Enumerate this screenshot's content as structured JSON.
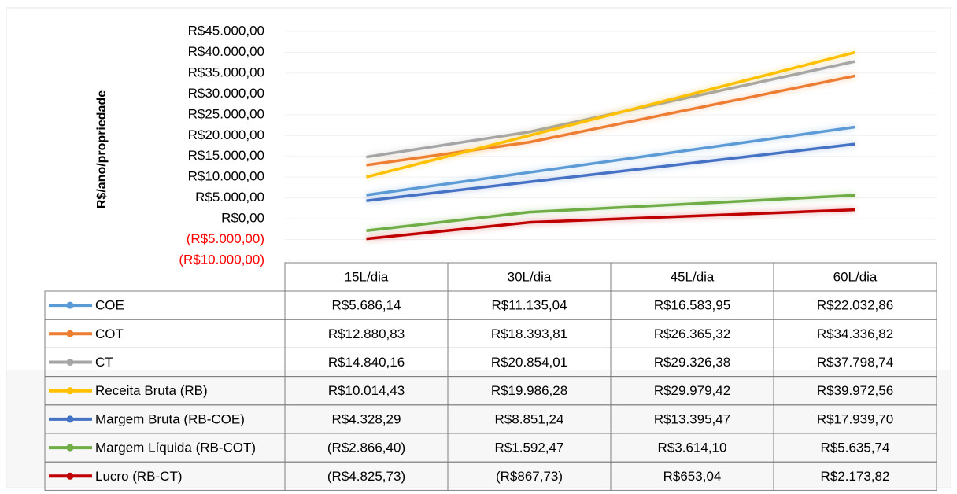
{
  "chart_data": {
    "type": "line",
    "y_label": "R$/ano/propriedade",
    "categories": [
      "15L/dia",
      "30L/dia",
      "45L/dia",
      "60L/dia"
    ],
    "ylim": [
      -10000,
      45000
    ],
    "yticks": [
      {
        "value": -10000,
        "label": "(R$10.000,00)"
      },
      {
        "value": -5000,
        "label": "(R$5.000,00)"
      },
      {
        "value": 0,
        "label": "R$0,00"
      },
      {
        "value": 5000,
        "label": "R$5.000,00"
      },
      {
        "value": 10000,
        "label": "R$10.000,00"
      },
      {
        "value": 15000,
        "label": "R$15.000,00"
      },
      {
        "value": 20000,
        "label": "R$20.000,00"
      },
      {
        "value": 25000,
        "label": "R$25.000,00"
      },
      {
        "value": 30000,
        "label": "R$30.000,00"
      },
      {
        "value": 35000,
        "label": "R$35.000,00"
      },
      {
        "value": 40000,
        "label": "R$40.000,00"
      },
      {
        "value": 45000,
        "label": "R$45.000,00"
      }
    ],
    "negative_tick_color": "#ff0000",
    "grid": true,
    "series": [
      {
        "name": "COE",
        "color": "#5b9bd5",
        "values": [
          5686.14,
          11135.04,
          16583.95,
          22032.86
        ],
        "value_labels": [
          "R$5.686,14",
          "R$11.135,04",
          "R$16.583,95",
          "R$22.032,86"
        ]
      },
      {
        "name": "COT",
        "color": "#ed7d31",
        "values": [
          12880.83,
          18393.81,
          26365.32,
          34336.82
        ],
        "value_labels": [
          "R$12.880,83",
          "R$18.393,81",
          "R$26.365,32",
          "R$34.336,82"
        ]
      },
      {
        "name": "CT",
        "color": "#a5a5a5",
        "values": [
          14840.16,
          20854.01,
          29326.38,
          37798.74
        ],
        "value_labels": [
          "R$14.840,16",
          "R$20.854,01",
          "R$29.326,38",
          "R$37.798,74"
        ]
      },
      {
        "name": "Receita Bruta (RB)",
        "color": "#ffc000",
        "values": [
          10014.43,
          19986.28,
          29979.42,
          39972.56
        ],
        "value_labels": [
          "R$10.014,43",
          "R$19.986,28",
          "R$29.979,42",
          "R$39.972,56"
        ]
      },
      {
        "name": "Margem Bruta (RB-COE)",
        "color": "#4472c4",
        "values": [
          4328.29,
          8851.24,
          13395.47,
          17939.7
        ],
        "value_labels": [
          "R$4.328,29",
          "R$8.851,24",
          "R$13.395,47",
          "R$17.939,70"
        ]
      },
      {
        "name": "Margem Líquida (RB-COT)",
        "color": "#70ad47",
        "values": [
          -2866.4,
          1592.47,
          3614.1,
          5635.74
        ],
        "value_labels": [
          "(R$2.866,40)",
          "R$1.592,47",
          "R$3.614,10",
          "R$5.635,74"
        ]
      },
      {
        "name": "Lucro (RB-CT)",
        "color": "#c00000",
        "values": [
          -4825.73,
          -867.73,
          653.04,
          2173.82
        ],
        "value_labels": [
          "(R$4.825,73)",
          "(R$867,73)",
          "R$653,04",
          "R$2.173,82"
        ]
      }
    ]
  }
}
